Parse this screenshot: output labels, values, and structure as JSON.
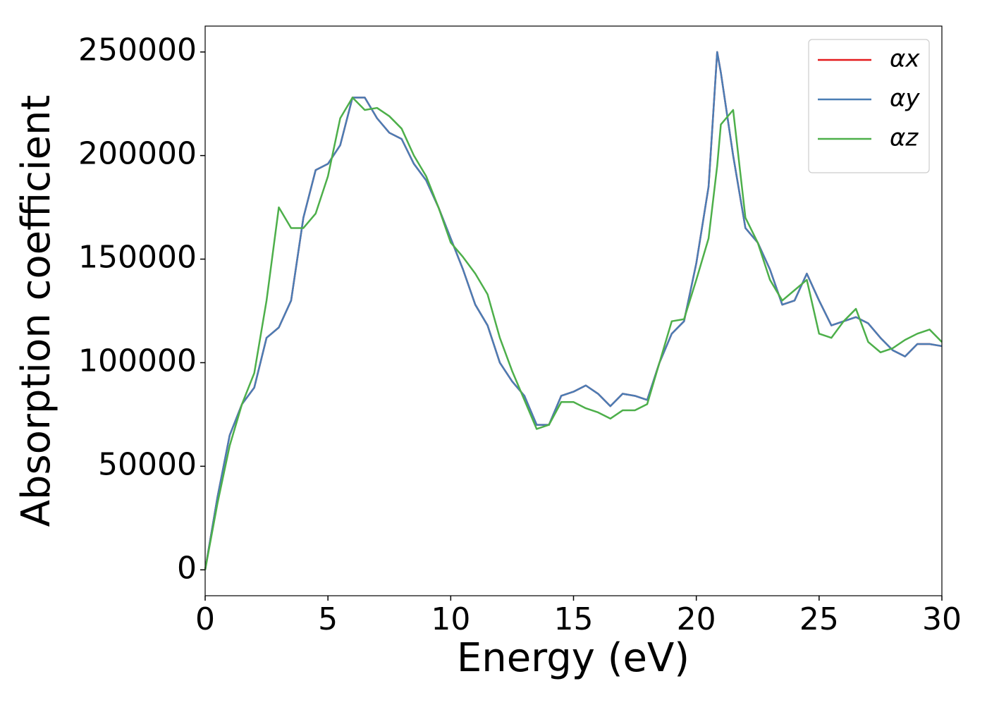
{
  "chart_data": {
    "type": "line",
    "xlabel": "Energy (eV)",
    "ylabel": "Absorption coefficient",
    "x": [
      0,
      0.5,
      1,
      1.5,
      2,
      2.5,
      3,
      3.5,
      4,
      4.5,
      5,
      5.5,
      6,
      6.5,
      7,
      7.5,
      8,
      8.5,
      9,
      9.5,
      10,
      10.5,
      11,
      11.5,
      12,
      12.5,
      13,
      13.5,
      14,
      14.5,
      15,
      15.5,
      16,
      16.5,
      17,
      17.5,
      18,
      18.5,
      19,
      19.5,
      20,
      20.5,
      20.85,
      21,
      21.5,
      22,
      22.5,
      23,
      23.5,
      24,
      24.5,
      25,
      25.5,
      26,
      26.5,
      27,
      27.5,
      28,
      28.5,
      29,
      29.5,
      30
    ],
    "series": [
      {
        "name": "αx",
        "color": "#e41a1c",
        "values": [
          0,
          35000,
          65000,
          80000,
          88000,
          112000,
          117000,
          130000,
          170000,
          193000,
          196000,
          205000,
          228000,
          228000,
          218000,
          211000,
          208000,
          196000,
          188000,
          175000,
          160000,
          145000,
          128000,
          118000,
          100000,
          91000,
          84000,
          70000,
          70000,
          84000,
          86000,
          89000,
          85000,
          79000,
          85000,
          84000,
          82000,
          100000,
          114000,
          120000,
          148000,
          185000,
          250000,
          240000,
          200000,
          165000,
          158000,
          145000,
          128000,
          130000,
          143000,
          130000,
          118000,
          120000,
          122000,
          119000,
          112000,
          106000,
          103000,
          109000,
          109000,
          108000
        ]
      },
      {
        "name": "αy",
        "color": "#4a7db5",
        "values": [
          0,
          35000,
          65000,
          80000,
          88000,
          112000,
          117000,
          130000,
          170000,
          193000,
          196000,
          205000,
          228000,
          228000,
          218000,
          211000,
          208000,
          196000,
          188000,
          175000,
          160000,
          145000,
          128000,
          118000,
          100000,
          91000,
          84000,
          70000,
          70000,
          84000,
          86000,
          89000,
          85000,
          79000,
          85000,
          84000,
          82000,
          100000,
          114000,
          120000,
          148000,
          185000,
          250000,
          240000,
          200000,
          165000,
          158000,
          145000,
          128000,
          130000,
          143000,
          130000,
          118000,
          120000,
          122000,
          119000,
          112000,
          106000,
          103000,
          109000,
          109000,
          108000
        ]
      },
      {
        "name": "αz",
        "color": "#4daf4a",
        "values": [
          0,
          32000,
          60000,
          80000,
          95000,
          130000,
          175000,
          165000,
          165000,
          172000,
          190000,
          218000,
          228000,
          222000,
          223000,
          219000,
          213000,
          200000,
          190000,
          175000,
          158000,
          151000,
          143000,
          133000,
          112000,
          96000,
          82000,
          68000,
          70000,
          81000,
          81000,
          78000,
          76000,
          73000,
          77000,
          77000,
          80000,
          100000,
          120000,
          121000,
          140000,
          160000,
          195000,
          215000,
          222000,
          170000,
          158000,
          140000,
          130000,
          135000,
          140000,
          114000,
          112000,
          120000,
          126000,
          110000,
          105000,
          107000,
          111000,
          114000,
          116000,
          110000
        ]
      }
    ],
    "xlim": [
      0,
      30
    ],
    "xticks": [
      0,
      5,
      10,
      15,
      20,
      25,
      30
    ],
    "ylim": [
      -12500,
      262500
    ],
    "yticks": [
      0,
      50000,
      100000,
      150000,
      200000,
      250000
    ],
    "grid": false,
    "legend": "upper right"
  }
}
